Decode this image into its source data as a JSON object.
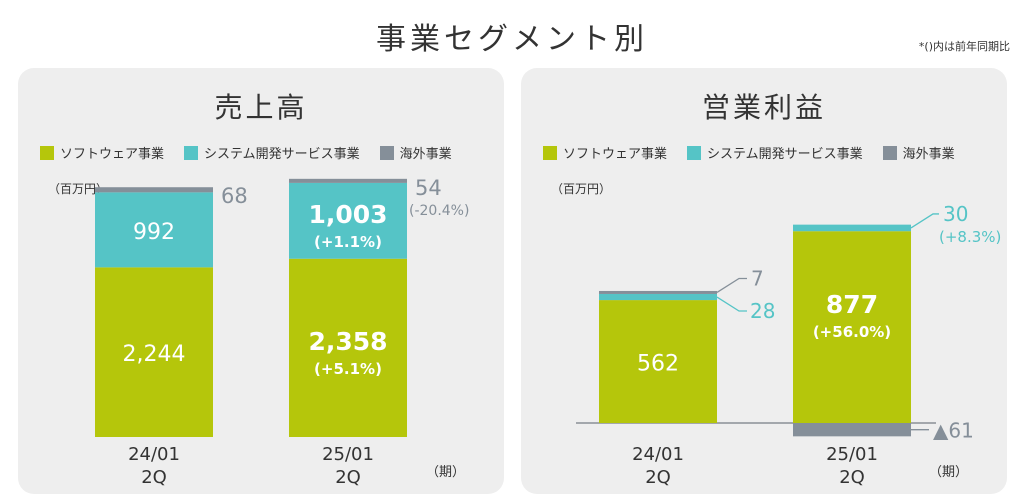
{
  "title": "事業セグメント別",
  "note": "*()内は前年同期比",
  "colors": {
    "software": "#b5c60b",
    "system": "#55c4c6",
    "overseas": "#858f99",
    "bg": "#eeeeee"
  },
  "legend": [
    "ソフトウェア事業",
    "システム開発サービス事業",
    "海外事業"
  ],
  "chart_data": [
    {
      "type": "bar",
      "title": "売上高",
      "unit": "（百万円）",
      "period_label": "（期）",
      "categories": [
        [
          "24/01",
          "2Q"
        ],
        [
          "25/01",
          "2Q"
        ]
      ],
      "series": [
        {
          "name": "ソフトウェア事業",
          "values": [
            2244,
            2358
          ],
          "labels": [
            "2,244",
            "2,358"
          ],
          "changes": [
            "",
            "(+5.1%)"
          ]
        },
        {
          "name": "システム開発サービス事業",
          "values": [
            992,
            1003
          ],
          "labels": [
            "992",
            "1,003"
          ],
          "changes": [
            "",
            "(+1.1%)"
          ]
        },
        {
          "name": "海外事業",
          "values": [
            68,
            54
          ],
          "labels": [
            "68",
            "54"
          ],
          "changes": [
            "",
            "(-20.4%)"
          ]
        }
      ]
    },
    {
      "type": "bar",
      "title": "営業利益",
      "unit": "（百万円）",
      "period_label": "（期）",
      "categories": [
        [
          "24/01",
          "2Q"
        ],
        [
          "25/01",
          "2Q"
        ]
      ],
      "series": [
        {
          "name": "ソフトウェア事業",
          "values": [
            562,
            877
          ],
          "labels": [
            "562",
            "877"
          ],
          "changes": [
            "",
            "(+56.0%)"
          ]
        },
        {
          "name": "システム開発サービス事業",
          "values": [
            28,
            30
          ],
          "labels": [
            "28",
            "30"
          ],
          "changes": [
            "",
            "(+8.3%)"
          ]
        },
        {
          "name": "海外事業",
          "values": [
            7,
            -61
          ],
          "labels": [
            "7",
            "▲61"
          ],
          "changes": [
            "",
            ""
          ]
        }
      ]
    }
  ]
}
